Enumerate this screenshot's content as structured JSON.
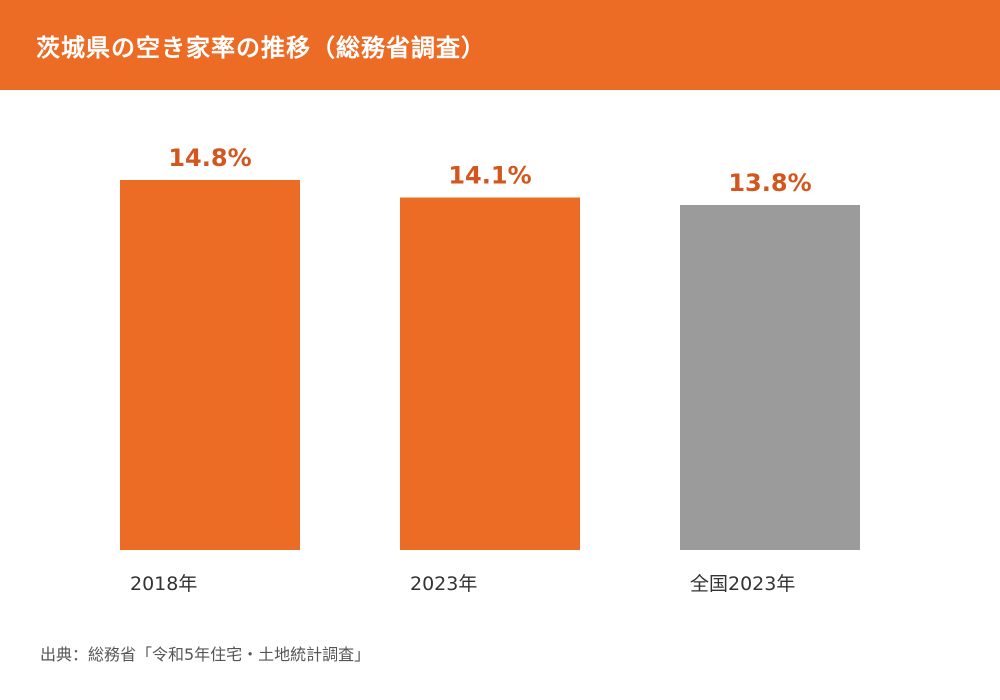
{
  "header": {
    "title": "茨城県の空き家率の推移（総務省調査）"
  },
  "chart_data": {
    "type": "bar",
    "categories": [
      "2018年",
      "2023年",
      "全国2023年"
    ],
    "values": [
      14.8,
      14.1,
      13.8
    ],
    "value_labels": [
      "14.8%",
      "14.1%",
      "13.8%"
    ],
    "colors": [
      "#EC6B25",
      "#EC6B25",
      "#9B9B9B"
    ],
    "label_color": "#D2561D",
    "ylim": [
      0,
      14.8
    ],
    "grid": false,
    "legend": "none"
  },
  "footer": {
    "source": "出典：総務省「令和5年住宅・土地統計調査」"
  }
}
